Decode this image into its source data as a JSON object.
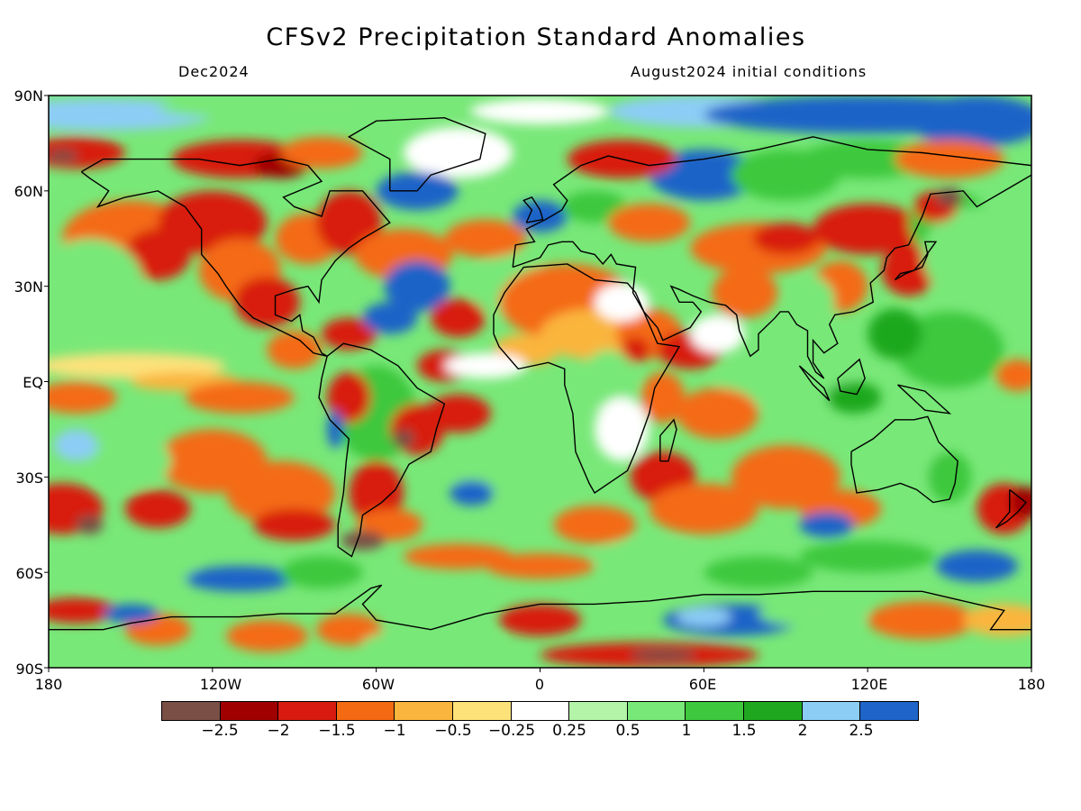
{
  "title": "CFSv2 Precipitation Standard Anomalies",
  "subtitle_left": "Dec2024",
  "subtitle_right": "August2024 initial conditions",
  "lat_labels": [
    "90N",
    "60N",
    "30N",
    "EQ",
    "30S",
    "60S",
    "90S"
  ],
  "lon_labels": [
    "180",
    "120W",
    "60W",
    "0",
    "60E",
    "120E",
    "180"
  ],
  "colorbar": {
    "colors": [
      "#7a4f45",
      "#a00000",
      "#d81a10",
      "#f46a12",
      "#fab53e",
      "#fde27a",
      "#ffffff",
      "#b4f4a8",
      "#78e878",
      "#3ec83e",
      "#1fa81f",
      "#8ccdf6",
      "#1f64c8"
    ],
    "labels": [
      "−2.5",
      "−2",
      "−1.5",
      "−1",
      "−0.5",
      "−0.25",
      "0.25",
      "0.5",
      "1",
      "1.5",
      "2",
      "2.5"
    ]
  }
}
